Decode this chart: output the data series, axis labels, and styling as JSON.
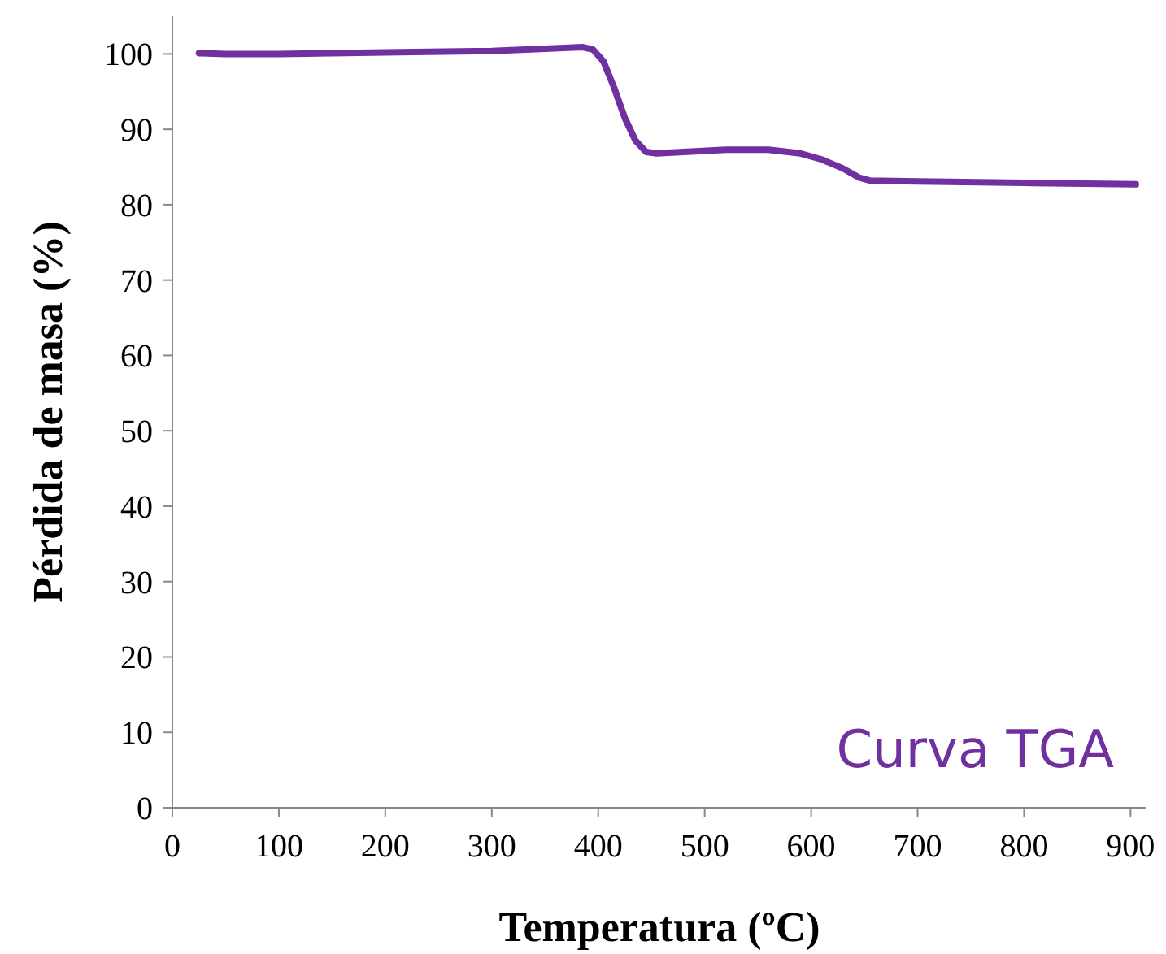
{
  "chart_data": {
    "type": "line",
    "xlabel": "Temperatura (ºC)",
    "ylabel": "Pérdida de masa (%)",
    "xlim": [
      0,
      915
    ],
    "xticks": [
      0,
      100,
      200,
      300,
      400,
      500,
      600,
      700,
      800,
      900
    ],
    "ylim": [
      0,
      105
    ],
    "yticks": [
      0,
      10,
      20,
      30,
      40,
      50,
      60,
      70,
      80,
      90,
      100
    ],
    "grid": false,
    "legend": "bottom right",
    "marker": "none",
    "line_style": "solid",
    "series": [
      {
        "name": "Curva TGA",
        "color": "#7030a0",
        "x": [
          25,
          50,
          100,
          200,
          300,
          350,
          385,
          395,
          405,
          415,
          425,
          435,
          445,
          455,
          480,
          520,
          560,
          590,
          610,
          630,
          645,
          655,
          700,
          800,
          905
        ],
        "values": [
          100.1,
          100.0,
          100.0,
          100.2,
          100.4,
          100.7,
          100.9,
          100.6,
          99,
          95.5,
          91.5,
          88.5,
          87.0,
          86.8,
          87.0,
          87.3,
          87.3,
          86.8,
          86.0,
          84.8,
          83.6,
          83.2,
          83.1,
          82.9,
          82.7
        ]
      }
    ]
  }
}
